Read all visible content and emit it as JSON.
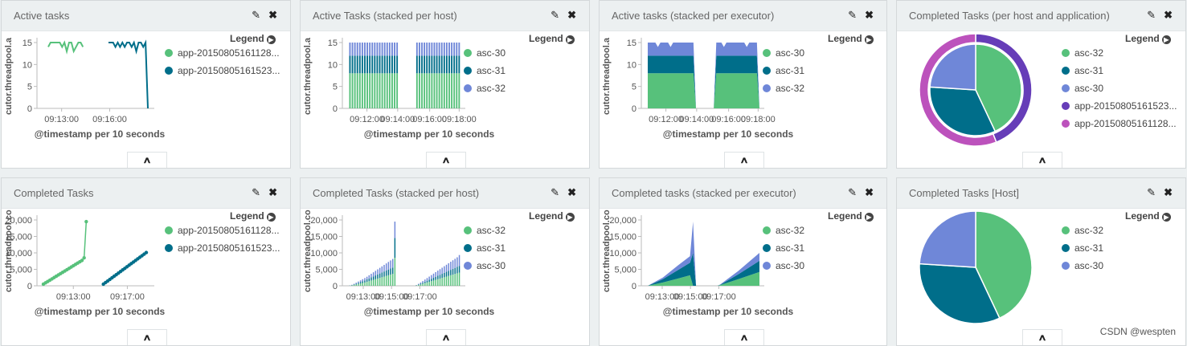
{
  "colors": {
    "green": "#57c17b",
    "teal": "#006e8a",
    "lavender": "#6f87d8",
    "purple": "#663db8",
    "magenta": "#bc52bc"
  },
  "panels": [
    {
      "title": "Active tasks",
      "chart_data": {
        "type": "line",
        "ylabel": "cutor.threadpool.a",
        "xlabel": "@timestamp per 10 seconds",
        "ylim": [
          0,
          15
        ],
        "yticks": [
          "0",
          "5",
          "10",
          "15"
        ],
        "xtick_labels": [
          "09:13:00",
          "09:16:00"
        ],
        "series": [
          {
            "name": "app-20150805161128...",
            "color": "#57c17b",
            "x": [
              0,
              1,
              2,
              3,
              4,
              5,
              6,
              7,
              8,
              9,
              10,
              11,
              12,
              13,
              14,
              15
            ],
            "y": [
              14,
              15,
              15,
              15,
              15,
              15,
              14,
              15,
              13,
              15,
              15,
              13,
              14,
              15,
              15,
              14
            ]
          },
          {
            "name": "app-20150805161523...",
            "color": "#006e8a",
            "x": [
              26,
              27,
              28,
              29,
              30,
              31,
              32,
              33,
              34,
              35,
              36,
              37,
              38,
              39,
              40,
              41,
              42,
              43
            ],
            "y": [
              15,
              15,
              15,
              14,
              15,
              14,
              15,
              14,
              15,
              15,
              14,
              15,
              13,
              15,
              15,
              14,
              15,
              0
            ]
          }
        ]
      }
    },
    {
      "title": "Active Tasks (stacked per host)",
      "chart_data": {
        "type": "bar",
        "ylabel": "cutor.threadpool.a",
        "xlabel": "@timestamp per 10 seconds",
        "ylim": [
          0,
          15
        ],
        "yticks": [
          "0",
          "5",
          "10",
          "15"
        ],
        "xtick_labels": [
          "09:12:00",
          "09:14:00",
          "09:16:00",
          "09:18:00"
        ],
        "series": [
          {
            "name": "asc-30",
            "color": "#57c17b",
            "values": [
              8,
              8,
              8,
              8,
              8,
              8,
              8,
              8,
              8,
              8,
              8,
              8,
              8,
              8,
              8,
              8,
              8,
              8,
              8,
              8,
              0,
              0,
              0,
              0,
              0,
              0,
              0,
              8,
              8,
              8,
              8,
              8,
              8,
              8,
              8,
              8,
              8,
              8,
              8,
              8,
              8,
              8,
              8,
              8,
              8
            ]
          },
          {
            "name": "asc-31",
            "color": "#006e8a",
            "values": [
              4,
              4,
              4,
              4,
              4,
              4,
              4,
              4,
              4,
              4,
              4,
              4,
              4,
              4,
              4,
              4,
              4,
              4,
              4,
              4,
              0,
              0,
              0,
              0,
              0,
              0,
              0,
              4,
              4,
              4,
              4,
              4,
              4,
              4,
              4,
              4,
              4,
              4,
              4,
              4,
              4,
              4,
              4,
              4,
              4
            ]
          },
          {
            "name": "asc-32",
            "color": "#6f87d8",
            "values": [
              3,
              3,
              3,
              3,
              3,
              3,
              3,
              3,
              3,
              3,
              3,
              3,
              3,
              3,
              3,
              3,
              3,
              3,
              3,
              3,
              0,
              0,
              0,
              0,
              0,
              0,
              0,
              3,
              3,
              3,
              3,
              3,
              3,
              3,
              3,
              3,
              3,
              3,
              3,
              3,
              3,
              3,
              3,
              3,
              3
            ]
          }
        ]
      }
    },
    {
      "title": "Active tasks (stacked per executor)",
      "chart_data": {
        "type": "area",
        "ylabel": "cutor.threadpool.a",
        "xlabel": "@timestamp per 10 seconds",
        "ylim": [
          0,
          15
        ],
        "yticks": [
          "0",
          "5",
          "10",
          "15"
        ],
        "xtick_labels": [
          "09:12:00",
          "09:14:00",
          "09:16:00",
          "09:18:00"
        ],
        "x": [
          0,
          1,
          2,
          3,
          4,
          5,
          6,
          7,
          8,
          9,
          10,
          11,
          12,
          13,
          14,
          15,
          16,
          17,
          18,
          19,
          20,
          21,
          22,
          23,
          24,
          25,
          26,
          27,
          28,
          29,
          30,
          31,
          32,
          33,
          34,
          35,
          36,
          37,
          38,
          39,
          40,
          41,
          42,
          43,
          44
        ],
        "series": [
          {
            "name": "asc-30",
            "color": "#57c17b",
            "values": [
              8,
              8,
              8,
              8,
              8,
              8,
              8,
              8,
              8,
              8,
              8,
              8,
              8,
              8,
              8,
              8,
              8,
              8,
              8,
              0,
              0,
              0,
              0,
              0,
              0,
              0,
              0,
              8,
              8,
              8,
              8,
              8,
              8,
              8,
              8,
              8,
              8,
              8,
              8,
              8,
              8,
              8,
              8,
              8,
              0
            ]
          },
          {
            "name": "asc-31",
            "color": "#006e8a",
            "values": [
              4,
              4,
              4,
              4,
              4,
              4,
              4,
              4,
              4,
              4,
              4,
              4,
              4,
              4,
              4,
              4,
              4,
              4,
              4,
              0,
              0,
              0,
              0,
              0,
              0,
              0,
              0,
              4,
              4,
              4,
              4,
              4,
              4,
              4,
              4,
              4,
              4,
              4,
              4,
              4,
              4,
              4,
              4,
              4,
              0
            ]
          },
          {
            "name": "asc-32",
            "color": "#6f87d8",
            "values": [
              3,
              3,
              3,
              3,
              2,
              3,
              3,
              3,
              3,
              2,
              3,
              3,
              3,
              3,
              3,
              3,
              3,
              3,
              3,
              0,
              0,
              0,
              0,
              0,
              0,
              0,
              0,
              3,
              3,
              3,
              2,
              3,
              3,
              3,
              3,
              3,
              3,
              3,
              3,
              2,
              3,
              3,
              3,
              3,
              0
            ]
          }
        ]
      }
    },
    {
      "title": "Completed Tasks (per host and application)",
      "chart_data": {
        "type": "pie",
        "inner": [
          {
            "name": "asc-32",
            "value": 43,
            "color": "#57c17b"
          },
          {
            "name": "asc-31",
            "value": 33,
            "color": "#006e8a"
          },
          {
            "name": "asc-30",
            "value": 24,
            "color": "#6f87d8"
          }
        ],
        "outer": [
          {
            "name": "app-20150805161523...",
            "value": 44,
            "color": "#663db8"
          },
          {
            "name": "app-20150805161128...",
            "value": 56,
            "color": "#bc52bc"
          }
        ],
        "legend": [
          {
            "name": "asc-32",
            "color": "#57c17b"
          },
          {
            "name": "asc-31",
            "color": "#006e8a"
          },
          {
            "name": "asc-30",
            "color": "#6f87d8"
          },
          {
            "name": "app-20150805161523...",
            "color": "#663db8"
          },
          {
            "name": "app-20150805161128...",
            "color": "#bc52bc"
          }
        ]
      }
    },
    {
      "title": "Completed Tasks",
      "chart_data": {
        "type": "scatter",
        "ylabel": "cutor.threadpool.co",
        "xlabel": "@timestamp per 10 seconds",
        "ylim": [
          0,
          20000
        ],
        "yticks": [
          "0",
          "5,000",
          "10,000",
          "15,000",
          "20,000"
        ],
        "xtick_labels": [
          "09:13:00",
          "09:17:00"
        ],
        "series": [
          {
            "name": "app-20150805161128...",
            "color": "#57c17b",
            "x": [
              0,
              1,
              2,
              3,
              4,
              5,
              6,
              7,
              8,
              9,
              10,
              11,
              12,
              13,
              14,
              15,
              16,
              17,
              18,
              19,
              20
            ],
            "y": [
              500,
              900,
              1300,
              1700,
              2100,
              2500,
              2900,
              3300,
              3700,
              4100,
              4500,
              4900,
              5300,
              5700,
              6100,
              6500,
              6900,
              7300,
              7700,
              8500,
              19500
            ]
          },
          {
            "name": "app-20150805161523...",
            "color": "#006e8a",
            "x": [
              28,
              29,
              30,
              31,
              32,
              33,
              34,
              35,
              36,
              37,
              38,
              39,
              40,
              41,
              42,
              43,
              44,
              45,
              46,
              47,
              48
            ],
            "y": [
              500,
              980,
              1460,
              1940,
              2420,
              2900,
              3380,
              3860,
              4340,
              4820,
              5300,
              5780,
              6260,
              6740,
              7220,
              7700,
              8180,
              8660,
              9140,
              9620,
              10100
            ]
          }
        ]
      }
    },
    {
      "title": "Completed Tasks (stacked per host)",
      "chart_data": {
        "type": "bar",
        "ylabel": "cutor.threadpool.co",
        "xlabel": "@timestamp per 10 seconds",
        "ylim": [
          0,
          20000
        ],
        "yticks": [
          "0",
          "5,000",
          "10,000",
          "15,000",
          "20,000"
        ],
        "xtick_labels": [
          "09:13:00",
          "09:15:00",
          "09:17:00"
        ],
        "series": [
          {
            "name": "asc-32",
            "color": "#57c17b",
            "values": [
              50,
              120,
              250,
              400,
              550,
              700,
              850,
              1000,
              1200,
              1400,
              1600,
              1800,
              2000,
              2200,
              2400,
              2600,
              2800,
              3000,
              3200,
              3400,
              3600,
              8500,
              0,
              0,
              0,
              0,
              0,
              0,
              0,
              0,
              0,
              100,
              250,
              400,
              600,
              800,
              1000,
              1200,
              1400,
              1600,
              1800,
              2000,
              2200,
              2400,
              2600,
              2800,
              3000,
              3200,
              3400,
              3600,
              3800,
              4000
            ]
          },
          {
            "name": "asc-31",
            "color": "#006e8a",
            "values": [
              30,
              80,
              150,
              250,
              350,
              450,
              550,
              650,
              750,
              850,
              950,
              1050,
              1150,
              1250,
              1350,
              1450,
              1550,
              1650,
              1750,
              1850,
              1950,
              6000,
              0,
              0,
              0,
              0,
              0,
              0,
              0,
              0,
              0,
              50,
              150,
              250,
              350,
              450,
              550,
              650,
              750,
              850,
              950,
              1050,
              1150,
              1250,
              1350,
              1450,
              1550,
              1650,
              1750,
              1850,
              1950,
              2050
            ]
          },
          {
            "name": "asc-30",
            "color": "#6f87d8",
            "values": [
              40,
              100,
              200,
              300,
              400,
              500,
              600,
              700,
              800,
              950,
              1100,
              1250,
              1400,
              1550,
              1700,
              1850,
              2000,
              2150,
              2300,
              2450,
              2600,
              5000,
              0,
              0,
              0,
              0,
              0,
              0,
              0,
              0,
              0,
              80,
              200,
              350,
              500,
              650,
              800,
              950,
              1100,
              1250,
              1400,
              1550,
              1700,
              1850,
              2000,
              2150,
              2300,
              2450,
              2600,
              2750,
              2900,
              3300
            ]
          }
        ]
      }
    },
    {
      "title": "Completed tasks (stacked per executor)",
      "chart_data": {
        "type": "area",
        "ylabel": "cutor.threadpool.co",
        "xlabel": "@timestamp per 10 seconds",
        "ylim": [
          0,
          20000
        ],
        "yticks": [
          "0",
          "5,000",
          "10,000",
          "15,000",
          "20,000"
        ],
        "xtick_labels": [
          "09:13:00",
          "09:15:00",
          "09:17:00"
        ],
        "x": [
          0,
          5,
          10,
          14,
          15,
          16,
          23,
          24,
          30,
          37
        ],
        "series": [
          {
            "name": "asc-32",
            "color": "#57c17b",
            "values": [
              0,
              1000,
              2200,
              3200,
              0,
              0,
              0,
              200,
              2000,
              4200
            ]
          },
          {
            "name": "asc-31",
            "color": "#006e8a",
            "values": [
              0,
              1000,
              2600,
              3800,
              10000,
              0,
              0,
              100,
              1500,
              3400
            ]
          },
          {
            "name": "asc-30",
            "color": "#6f87d8",
            "values": [
              0,
              500,
              1400,
              2000,
              9500,
              0,
              0,
              100,
              1000,
              2400
            ]
          }
        ]
      }
    },
    {
      "title": "Completed Tasks [Host]",
      "chart_data": {
        "type": "pie",
        "inner": [
          {
            "name": "asc-32",
            "value": 43,
            "color": "#57c17b"
          },
          {
            "name": "asc-31",
            "value": 33,
            "color": "#006e8a"
          },
          {
            "name": "asc-30",
            "value": 24,
            "color": "#6f87d8"
          }
        ],
        "legend": [
          {
            "name": "asc-32",
            "color": "#57c17b"
          },
          {
            "name": "asc-31",
            "color": "#006e8a"
          },
          {
            "name": "asc-30",
            "color": "#6f87d8"
          }
        ]
      }
    }
  ],
  "legend_title": "Legend",
  "icons": {
    "edit": "pencil-icon",
    "close": "close-icon",
    "legend_toggle": "arrow-right-circle-icon",
    "collapse": "chevron-up-icon"
  },
  "watermark": "CSDN @wespten"
}
